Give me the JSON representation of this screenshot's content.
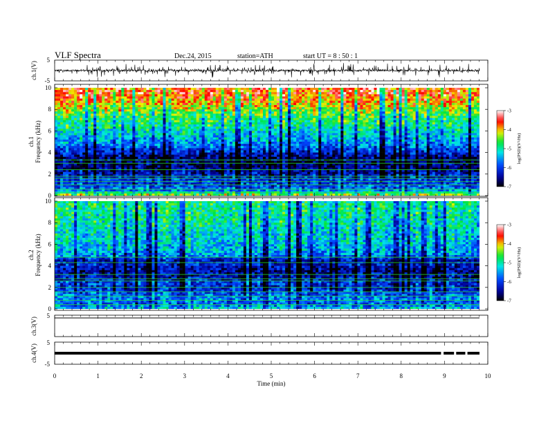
{
  "header": {
    "title": "VLF  Spectra",
    "date": "Dec.24, 2015",
    "station": "station=ATH",
    "start": "start  UT =   8 : 50 : 1"
  },
  "colors": {
    "waveform": "#000000",
    "colormap": [
      "#000000",
      "#0000ff",
      "#00ffff",
      "#00ff00",
      "#ffff00",
      "#ff0000",
      "#ffffff"
    ]
  },
  "chart_data": [
    {
      "type": "line",
      "name": "ch1-waveform",
      "ylabel": "ch.1(V)",
      "ylim": [
        -5,
        5
      ],
      "yticks": [
        "5",
        "-5"
      ],
      "xlim": [
        0,
        10
      ],
      "description_of_trace": "dense noisy signal, baseline around 0 V with frequent spikes",
      "baseline": 0,
      "spike_amplitude_approx": 2.5
    },
    {
      "type": "heatmap",
      "name": "ch1-spectrogram",
      "ylabel_top": "ch.1",
      "ylabel": "Frequency  (kHz)",
      "ylim": [
        0,
        10
      ],
      "yticks": [
        "0",
        "2",
        "4",
        "6",
        "8",
        "10"
      ],
      "xlim": [
        0,
        9.8
      ],
      "colorbar": {
        "label": "log(PSD)(V²/Hz)",
        "range": [
          -7,
          -3
        ],
        "ticks": [
          "-3",
          "-4",
          "-5",
          "-6",
          "-7"
        ]
      },
      "profile_khz_to_logpsd": [
        [
          0.0,
          -4.2
        ],
        [
          0.5,
          -5.6
        ],
        [
          1.0,
          -6.0
        ],
        [
          1.5,
          -6.0
        ],
        [
          2.0,
          -6.3
        ],
        [
          2.5,
          -6.6
        ],
        [
          3.0,
          -6.7
        ],
        [
          3.5,
          -6.6
        ],
        [
          4.0,
          -6.2
        ],
        [
          4.5,
          -5.8
        ],
        [
          5.0,
          -5.5
        ],
        [
          5.5,
          -5.3
        ],
        [
          6.0,
          -5.1
        ],
        [
          6.5,
          -4.9
        ],
        [
          7.0,
          -4.8
        ],
        [
          7.5,
          -4.6
        ],
        [
          8.0,
          -4.3
        ],
        [
          8.5,
          -4.0
        ],
        [
          9.0,
          -3.8
        ],
        [
          9.5,
          -3.6
        ],
        [
          10.0,
          -3.6
        ]
      ],
      "horizontal_lines_khz": [
        0.3,
        0.6,
        1.0,
        1.3,
        1.6,
        1.8,
        2.4,
        3.0,
        3.3
      ]
    },
    {
      "type": "heatmap",
      "name": "ch2-spectrogram",
      "ylabel_top": "ch.2",
      "ylabel": "Frequency  (kHz)",
      "ylim": [
        0,
        10
      ],
      "yticks": [
        "0",
        "2",
        "4",
        "6",
        "8",
        "10"
      ],
      "xlim": [
        0,
        9.8
      ],
      "colorbar": {
        "label": "log(PSD)(V²/Hz)",
        "range": [
          -7,
          -3
        ],
        "ticks": [
          "-3",
          "-4",
          "-5",
          "-6",
          "-7"
        ]
      },
      "profile_khz_to_logpsd": [
        [
          0.0,
          -5.2
        ],
        [
          0.5,
          -5.8
        ],
        [
          1.0,
          -5.6
        ],
        [
          1.5,
          -5.9
        ],
        [
          2.0,
          -6.1
        ],
        [
          2.5,
          -6.0
        ],
        [
          3.0,
          -6.4
        ],
        [
          3.5,
          -6.5
        ],
        [
          4.0,
          -6.2
        ],
        [
          4.5,
          -6.3
        ],
        [
          5.0,
          -5.6
        ],
        [
          5.5,
          -5.4
        ],
        [
          6.0,
          -5.3
        ],
        [
          6.5,
          -5.2
        ],
        [
          7.0,
          -5.2
        ],
        [
          7.5,
          -5.1
        ],
        [
          8.0,
          -5.0
        ],
        [
          8.5,
          -5.0
        ],
        [
          9.0,
          -4.9
        ],
        [
          9.5,
          -4.9
        ],
        [
          10.0,
          -4.9
        ]
      ],
      "horizontal_lines_khz": [
        0.4,
        0.8,
        1.2,
        1.6,
        2.0,
        2.6,
        2.8,
        3.2,
        4.3,
        4.8
      ]
    },
    {
      "type": "line",
      "name": "ch3-waveform",
      "ylabel": "ch.3(V)",
      "ylim": [
        -5,
        5
      ],
      "yticks": [
        "5"
      ],
      "xlim": [
        0,
        10
      ],
      "baseline": 5
    },
    {
      "type": "line",
      "name": "ch4-waveform",
      "ylabel": "ch.4(V)",
      "ylim": [
        -5,
        5
      ],
      "yticks": [
        "5",
        "-5"
      ],
      "xlim": [
        0,
        10
      ],
      "xlabel": "Time  (min)",
      "xticks": [
        "0",
        "1",
        "2",
        "3",
        "4",
        "5",
        "6",
        "7",
        "8",
        "9",
        "10"
      ],
      "baseline": 0,
      "gaps_min": [
        [
          8.92,
          8.98
        ],
        [
          9.22,
          9.27
        ],
        [
          9.48,
          9.53
        ]
      ]
    }
  ]
}
